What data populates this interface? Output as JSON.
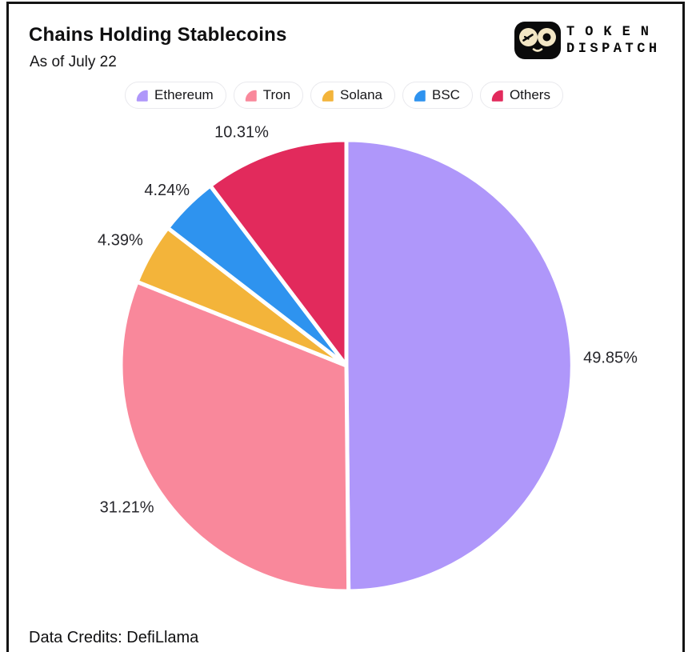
{
  "header": {
    "title": "Chains Holding Stablecoins",
    "subtitle": "As of July 22",
    "logo": {
      "icon": "token-dispatch-owl-icon",
      "line1": "TOKEN",
      "line2": "DISPATCH"
    }
  },
  "chart_data": {
    "type": "pie",
    "title": "Chains Holding Stablecoins",
    "subtitle": "As of July 22",
    "categories": [
      "Ethereum",
      "Tron",
      "Solana",
      "BSC",
      "Others"
    ],
    "values": [
      49.85,
      31.21,
      4.39,
      4.24,
      10.31
    ],
    "labels": [
      "49.85%",
      "31.21%",
      "4.39%",
      "4.24%",
      "10.31%"
    ],
    "colors": [
      "#af97fa",
      "#f9889b",
      "#f3b43a",
      "#2e93ef",
      "#e22a5c"
    ],
    "start_angle_deg": 0,
    "direction": "clockwise",
    "slice_border_color": "#ffffff",
    "legend_position": "top",
    "source": "Data Credits: DefiLlama"
  },
  "footer": {
    "credits": "Data Credits: DefiLlama"
  }
}
